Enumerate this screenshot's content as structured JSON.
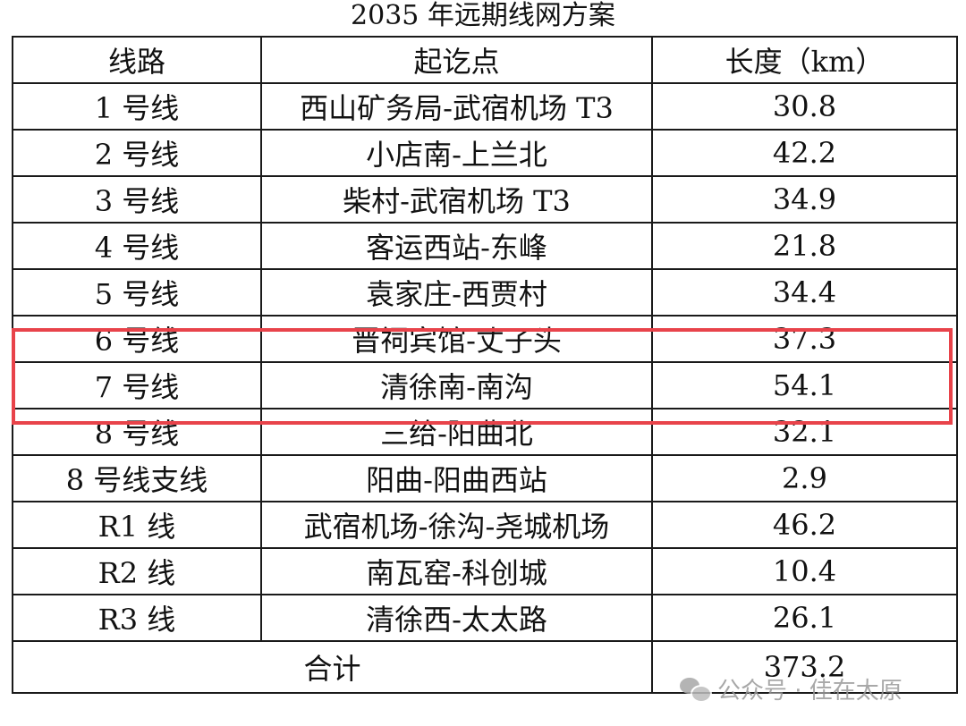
{
  "title": "2035 年远期线网方案",
  "table": {
    "headers": [
      "线路",
      "起讫点",
      "长度（km）"
    ],
    "rows": [
      {
        "line": "1 号线",
        "route": "西山矿务局-武宿机场 T3",
        "length": "30.8"
      },
      {
        "line": "2 号线",
        "route": "小店南-上兰北",
        "length": "42.2"
      },
      {
        "line": "3 号线",
        "route": "柴村-武宿机场 T3",
        "length": "34.9"
      },
      {
        "line": "4 号线",
        "route": "客运西站-东峰",
        "length": "21.8"
      },
      {
        "line": "5 号线",
        "route": "袁家庄-西贾村",
        "length": "34.4"
      },
      {
        "line": "6 号线",
        "route": "晋祠宾馆-丈子头",
        "length": "37.3"
      },
      {
        "line": "7 号线",
        "route": "清徐南-南沟",
        "length": "54.1"
      },
      {
        "line": "8 号线",
        "route": "三给-阳曲北",
        "length": "32.1"
      },
      {
        "line": "8 号线支线",
        "route": "阳曲-阳曲西站",
        "length": "2.9"
      },
      {
        "line": "R1 线",
        "route": "武宿机场-徐沟-尧城机场",
        "length": "46.2"
      },
      {
        "line": "R2 线",
        "route": "南瓦窑-科创城",
        "length": "10.4"
      },
      {
        "line": "R3 线",
        "route": "清徐西-太太路",
        "length": "26.1"
      }
    ],
    "total_label": "合计",
    "total_value": "373.2"
  },
  "highlight_color": "#e8434a",
  "watermark": {
    "icon": "wechat-icon",
    "text": "公众号 · 佳在太原"
  }
}
